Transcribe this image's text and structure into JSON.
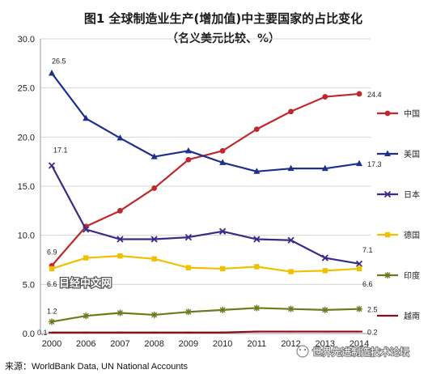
{
  "chart_data": {
    "type": "line",
    "title": "图1 全球制造业生产(增加值)中主要国家的占比变化",
    "subtitle": "（名义美元比较、%）",
    "xlabel": "",
    "ylabel": "",
    "categories": [
      "2000",
      "2006",
      "2007",
      "2008",
      "2009",
      "2010",
      "2011",
      "2012",
      "2013",
      "2014"
    ],
    "ylim": [
      0,
      30
    ],
    "yticks": [
      "0.0",
      "5.0",
      "10.0",
      "15.0",
      "20.0",
      "25.0",
      "30.0"
    ],
    "grid": true,
    "legend_position": "right",
    "series": [
      {
        "name": "中国",
        "color": "#c0282d",
        "marker": "circle",
        "values": [
          6.9,
          10.9,
          12.5,
          14.8,
          17.7,
          18.6,
          20.8,
          22.6,
          24.1,
          24.4
        ]
      },
      {
        "name": "美国",
        "color": "#1f2f8c",
        "marker": "triangle",
        "values": [
          26.5,
          21.9,
          19.9,
          18.0,
          18.6,
          17.4,
          16.5,
          16.8,
          16.8,
          17.3
        ]
      },
      {
        "name": "日本",
        "color": "#3b2a86",
        "marker": "x",
        "values": [
          17.1,
          10.6,
          9.6,
          9.6,
          9.8,
          10.4,
          9.6,
          9.5,
          7.7,
          7.1
        ]
      },
      {
        "name": "德国",
        "color": "#f0c000",
        "marker": "square",
        "values": [
          6.6,
          7.7,
          7.9,
          7.6,
          6.7,
          6.6,
          6.8,
          6.3,
          6.4,
          6.6
        ]
      },
      {
        "name": "印度",
        "color": "#6d7a1c",
        "marker": "star",
        "values": [
          1.2,
          1.8,
          2.1,
          1.9,
          2.2,
          2.4,
          2.6,
          2.5,
          2.4,
          2.5
        ]
      },
      {
        "name": "越南",
        "color": "#8a0e1a",
        "marker": "dash",
        "values": [
          0.1,
          0.1,
          0.1,
          0.1,
          0.1,
          0.1,
          0.2,
          0.2,
          0.2,
          0.2
        ]
      }
    ],
    "data_labels": [
      "26.5",
      "17.1",
      "6.9",
      "6.6",
      "1.2",
      "0.1",
      "24.4",
      "17.3",
      "7.1",
      "6.6",
      "2.5",
      "0.2"
    ],
    "source": "来源：WorldBank Data, UN National Accounts"
  },
  "watermarks": {
    "center": "日经中文网",
    "bottom_right": "世界先进制造技术论坛"
  }
}
